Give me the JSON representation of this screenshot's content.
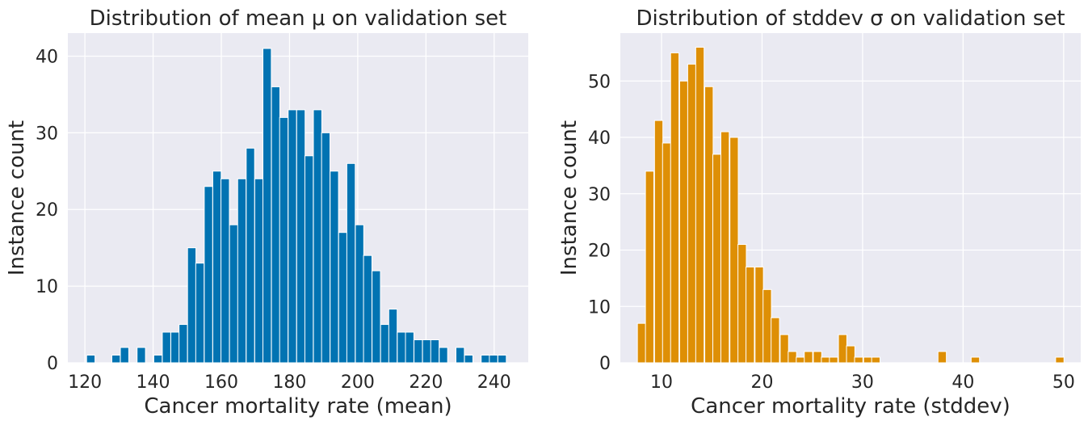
{
  "chart_data": [
    {
      "type": "bar",
      "title": "Distribution of mean μ on validation set",
      "xlabel": "Cancer mortality rate (mean)",
      "ylabel": "Instance count",
      "xlim": [
        115,
        250
      ],
      "ylim": [
        0,
        43
      ],
      "xticks": [
        120,
        140,
        160,
        180,
        200,
        220,
        240
      ],
      "yticks": [
        0,
        10,
        20,
        30,
        40
      ],
      "grid": true,
      "bar_color": "#0173b2",
      "bin_width": 2.46,
      "bins_start": [
        120.5,
        127.9,
        130.4,
        135.3,
        140.2,
        142.7,
        145.2,
        147.6,
        150.1,
        152.5,
        155.0,
        157.5,
        159.9,
        162.4,
        164.8,
        167.3,
        169.8,
        172.2,
        174.7,
        177.1,
        179.6,
        182.1,
        184.5,
        187.0,
        189.4,
        191.9,
        194.4,
        196.8,
        199.3,
        201.7,
        204.2,
        206.7,
        209.1,
        211.6,
        214.0,
        216.5,
        219.0,
        221.4,
        223.9,
        228.8,
        231.3,
        236.2,
        238.6,
        241.1
      ],
      "values": [
        1,
        1,
        2,
        2,
        1,
        4,
        4,
        5,
        15,
        13,
        23,
        25,
        24,
        18,
        24,
        28,
        24,
        41,
        36,
        32,
        33,
        33,
        27,
        33,
        30,
        25,
        17,
        26,
        18,
        14,
        12,
        5,
        7,
        4,
        4,
        3,
        3,
        3,
        2,
        2,
        1,
        1,
        1,
        1
      ]
    },
    {
      "type": "bar",
      "title": "Distribution of stddev σ on validation set",
      "xlabel": "Cancer mortality rate (stddev)",
      "ylabel": "Instance count",
      "xlim": [
        5.9,
        51.7
      ],
      "ylim": [
        0,
        58.5
      ],
      "xticks": [
        10,
        20,
        30,
        40,
        50
      ],
      "yticks": [
        0,
        10,
        20,
        30,
        40,
        50
      ],
      "grid": true,
      "bar_color": "#de8f05",
      "bin_width": 0.832,
      "bins_start": [
        7.6,
        8.4,
        9.3,
        10.1,
        10.9,
        11.8,
        12.6,
        13.4,
        14.3,
        15.1,
        15.9,
        16.8,
        17.6,
        18.4,
        19.3,
        20.1,
        20.9,
        21.8,
        22.6,
        23.4,
        24.2,
        25.1,
        25.9,
        26.7,
        27.6,
        28.4,
        29.2,
        30.1,
        30.9,
        37.5,
        40.8,
        49.2
      ],
      "values": [
        7,
        34,
        43,
        39,
        55,
        50,
        53,
        56,
        49,
        37,
        41,
        40,
        21,
        17,
        17,
        13,
        8,
        5,
        2,
        1,
        2,
        2,
        1,
        1,
        5,
        3,
        1,
        1,
        1,
        2,
        1,
        1
      ]
    }
  ]
}
